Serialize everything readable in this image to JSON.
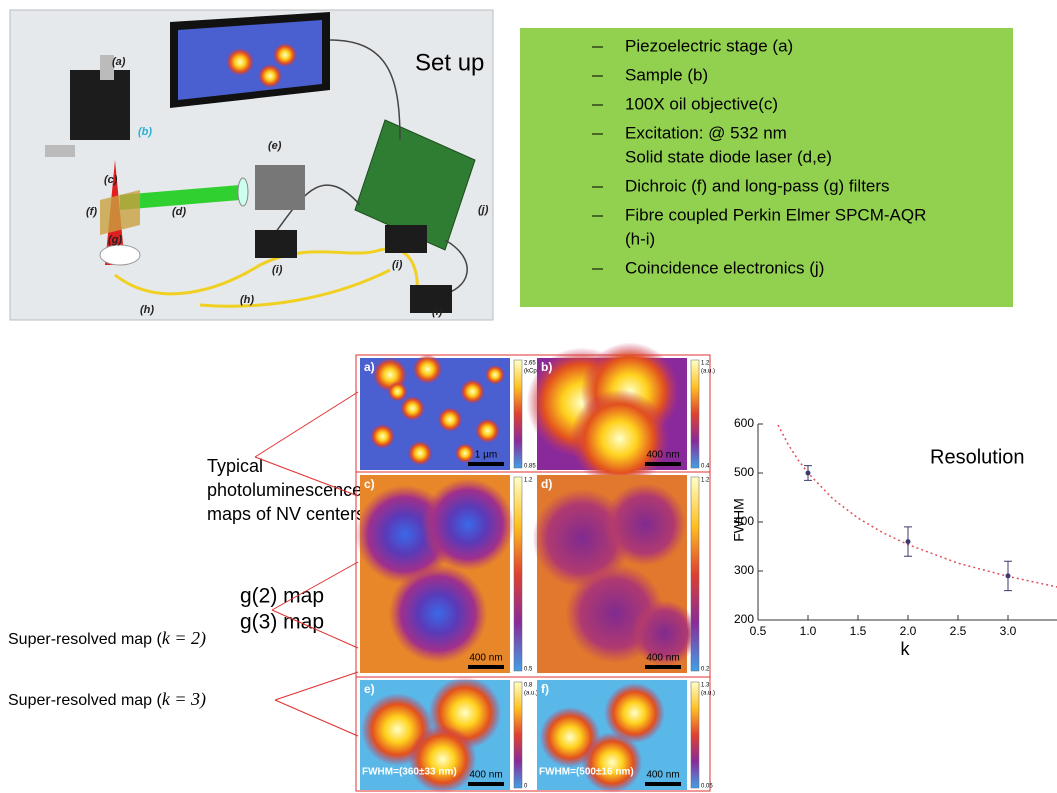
{
  "setup": {
    "title": "Set up",
    "labels": [
      "(a)",
      "(b)",
      "(c)",
      "(d)",
      "(e)",
      "(f)",
      "(g)",
      "(h)",
      "(h)",
      "(i)",
      "(i)",
      "(i)",
      "(j)"
    ]
  },
  "components": [
    [
      "Piezoelectric stage (a)"
    ],
    [
      "Sample (b)"
    ],
    [
      "100X oil objective(c)"
    ],
    [
      "Excitation: @ 532 nm",
      "Solid state diode laser (d,e)"
    ],
    [
      "Dichroic (f) and long-pass (g) filters"
    ],
    [
      "Fibre coupled  Perkin Elmer SPCM-AQR",
      "(h-i)"
    ],
    [
      "Coincidence electronics (j)"
    ]
  ],
  "captions": {
    "photoluminescence": [
      "Typical",
      "photoluminescence",
      "maps of NV centers"
    ],
    "g2": "g(2) map",
    "g3": "g(3) map",
    "k2": [
      "Super-resolved map (",
      "k",
      " = 2)"
    ],
    "k3": [
      "Super-resolved map (",
      "k",
      " = 3)"
    ]
  },
  "maps": [
    {
      "label": "a)",
      "max": "2.65",
      "unit": "(kCps)",
      "min": "0.85",
      "scale": "1 µm"
    },
    {
      "label": "b)",
      "max": "1.2",
      "unit": "(a.u.)",
      "min": "0.4",
      "scale": "400 nm"
    },
    {
      "label": "c)",
      "max": "1.2",
      "min": "0.5",
      "scale": "400 nm"
    },
    {
      "label": "d)",
      "max": "1.2",
      "min": "0.2",
      "scale": "400 nm"
    },
    {
      "label": "e)",
      "max": "0.8",
      "unit": "(a.u.)",
      "min": "0",
      "scale": "400 nm",
      "note": "FWHM=(360±33 nm)"
    },
    {
      "label": "f)",
      "max": "1.3",
      "unit": "(a.u.)",
      "min": "0.05",
      "scale": "400 nm",
      "note": "FWHM=(500±16 nm)"
    }
  ],
  "chart_data": {
    "type": "scatter",
    "title": "Resolution",
    "x_label": "k",
    "y_label": "FWHM",
    "xlim": [
      0.5,
      3.5
    ],
    "ylim": [
      200,
      600
    ],
    "xticks": [
      0.5,
      {
        "value": 1,
        "label": "1.0"
      },
      1.5,
      {
        "value": 2,
        "label": "2.0"
      },
      2.5,
      {
        "value": 3,
        "label": "3.0"
      }
    ],
    "yticks": [
      200,
      300,
      400,
      500,
      600
    ],
    "points": {
      "x": [
        1,
        2,
        3
      ],
      "values": [
        500,
        360,
        290
      ],
      "errors": [
        15,
        30,
        30
      ],
      "color": "#3b3b6e"
    },
    "fit": {
      "x": [
        0.7,
        0.8,
        0.9,
        1,
        1.25,
        1.5,
        1.75,
        2,
        2.5,
        3,
        3.5
      ],
      "values": [
        598,
        559,
        527,
        500,
        447,
        408,
        378,
        354,
        316,
        289,
        267
      ],
      "color": "#e0505a"
    }
  }
}
